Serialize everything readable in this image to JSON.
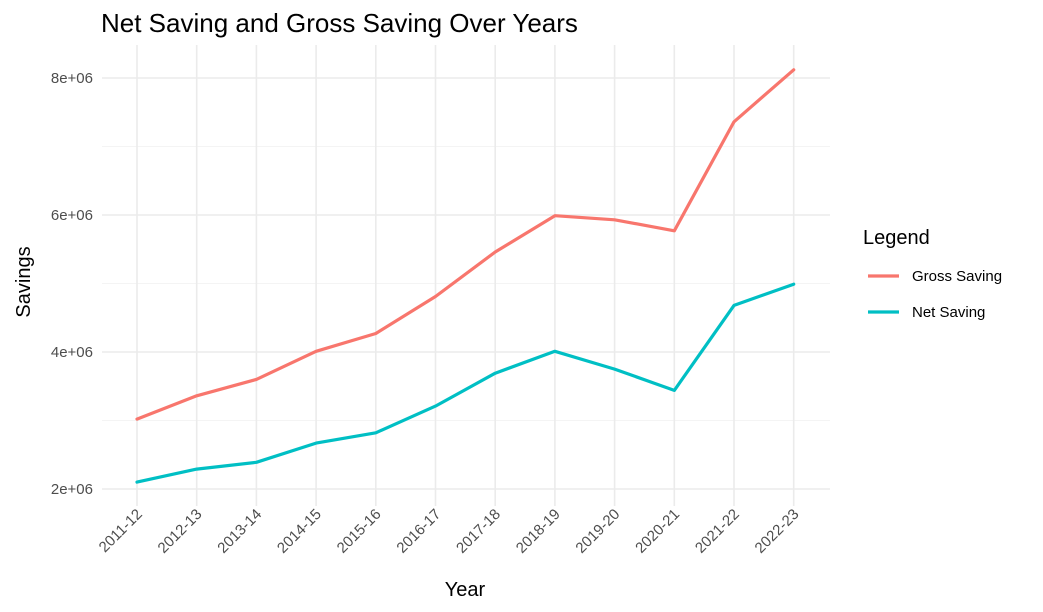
{
  "chart_data": {
    "type": "line",
    "title": "Net Saving and Gross Saving Over Years",
    "xlabel": "Year",
    "ylabel": "Savings",
    "categories": [
      "2011-12",
      "2012-13",
      "2013-14",
      "2014-15",
      "2015-16",
      "2016-17",
      "2017-18",
      "2018-19",
      "2019-20",
      "2020-21",
      "2021-22",
      "2022-23"
    ],
    "yticks": [
      2000000,
      4000000,
      6000000,
      8000000
    ],
    "ytick_labels": [
      "2e+06",
      "4e+06",
      "6e+06",
      "8e+06"
    ],
    "ylim": [
      1800000,
      8300000
    ],
    "grid": true,
    "legend": {
      "title": "Legend",
      "placement": "right",
      "entries": [
        "Gross Saving",
        "Net Saving"
      ]
    },
    "series": [
      {
        "name": "Gross Saving",
        "color": "#F8766D",
        "values": [
          3020000,
          3360000,
          3600000,
          4010000,
          4270000,
          4810000,
          5460000,
          5990000,
          5930000,
          5770000,
          7360000,
          8120000
        ]
      },
      {
        "name": "Net Saving",
        "color": "#00BFC4",
        "values": [
          2100000,
          2290000,
          2390000,
          2670000,
          2820000,
          3210000,
          3690000,
          4010000,
          3750000,
          3440000,
          4680000,
          4990000
        ]
      }
    ]
  }
}
